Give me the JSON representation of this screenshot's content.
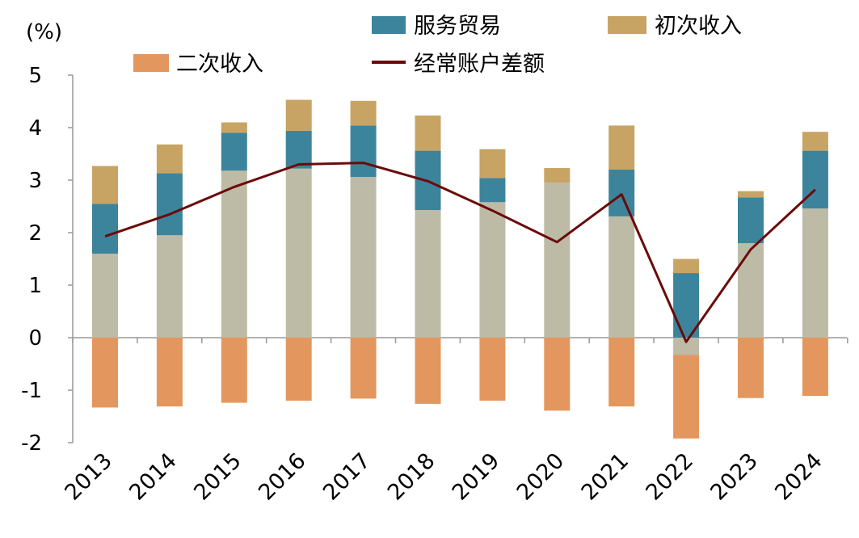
{
  "chart_data": {
    "type": "bar",
    "unit_label": "(%)",
    "categories": [
      "2013",
      "2014",
      "2015",
      "2016",
      "2017",
      "2018",
      "2019",
      "2020",
      "2021",
      "2022",
      "2023",
      "2024"
    ],
    "ylim": [
      -2,
      5
    ],
    "yticks": [
      "-2",
      "-1",
      "0",
      "1",
      "2",
      "3",
      "4",
      "5"
    ],
    "grid": false,
    "legend_position": "top",
    "series": [
      {
        "name": "",
        "kind": "bar",
        "color": "#BDBAA6",
        "values": [
          1.6,
          1.95,
          3.18,
          3.22,
          3.06,
          2.43,
          2.58,
          2.95,
          2.31,
          -0.33,
          1.8,
          2.46
        ]
      },
      {
        "name": "服务贸易",
        "kind": "bar",
        "color": "#3C849B",
        "values": [
          0.95,
          1.18,
          0.72,
          0.72,
          0.98,
          1.13,
          0.46,
          0,
          0.89,
          1.23,
          0.87,
          1.1
        ]
      },
      {
        "name": "初次收入",
        "kind": "bar",
        "color": "#C7A464",
        "values": [
          0.72,
          0.55,
          0.2,
          0.59,
          0.47,
          0.67,
          0.55,
          0.28,
          0.84,
          0.27,
          0.12,
          0.36
        ]
      },
      {
        "name": "二次收入",
        "kind": "bar",
        "color": "#E3975E",
        "values": [
          -1.33,
          -1.31,
          -1.24,
          -1.2,
          -1.16,
          -1.26,
          -1.2,
          -1.39,
          -1.31,
          -1.59,
          -1.15,
          -1.11
        ]
      },
      {
        "name": "经常账户差额",
        "kind": "line",
        "color": "#6B0A0A",
        "values": [
          1.93,
          2.35,
          2.87,
          3.3,
          3.33,
          2.98,
          2.42,
          1.82,
          2.73,
          -0.08,
          1.68,
          2.82
        ]
      }
    ]
  }
}
